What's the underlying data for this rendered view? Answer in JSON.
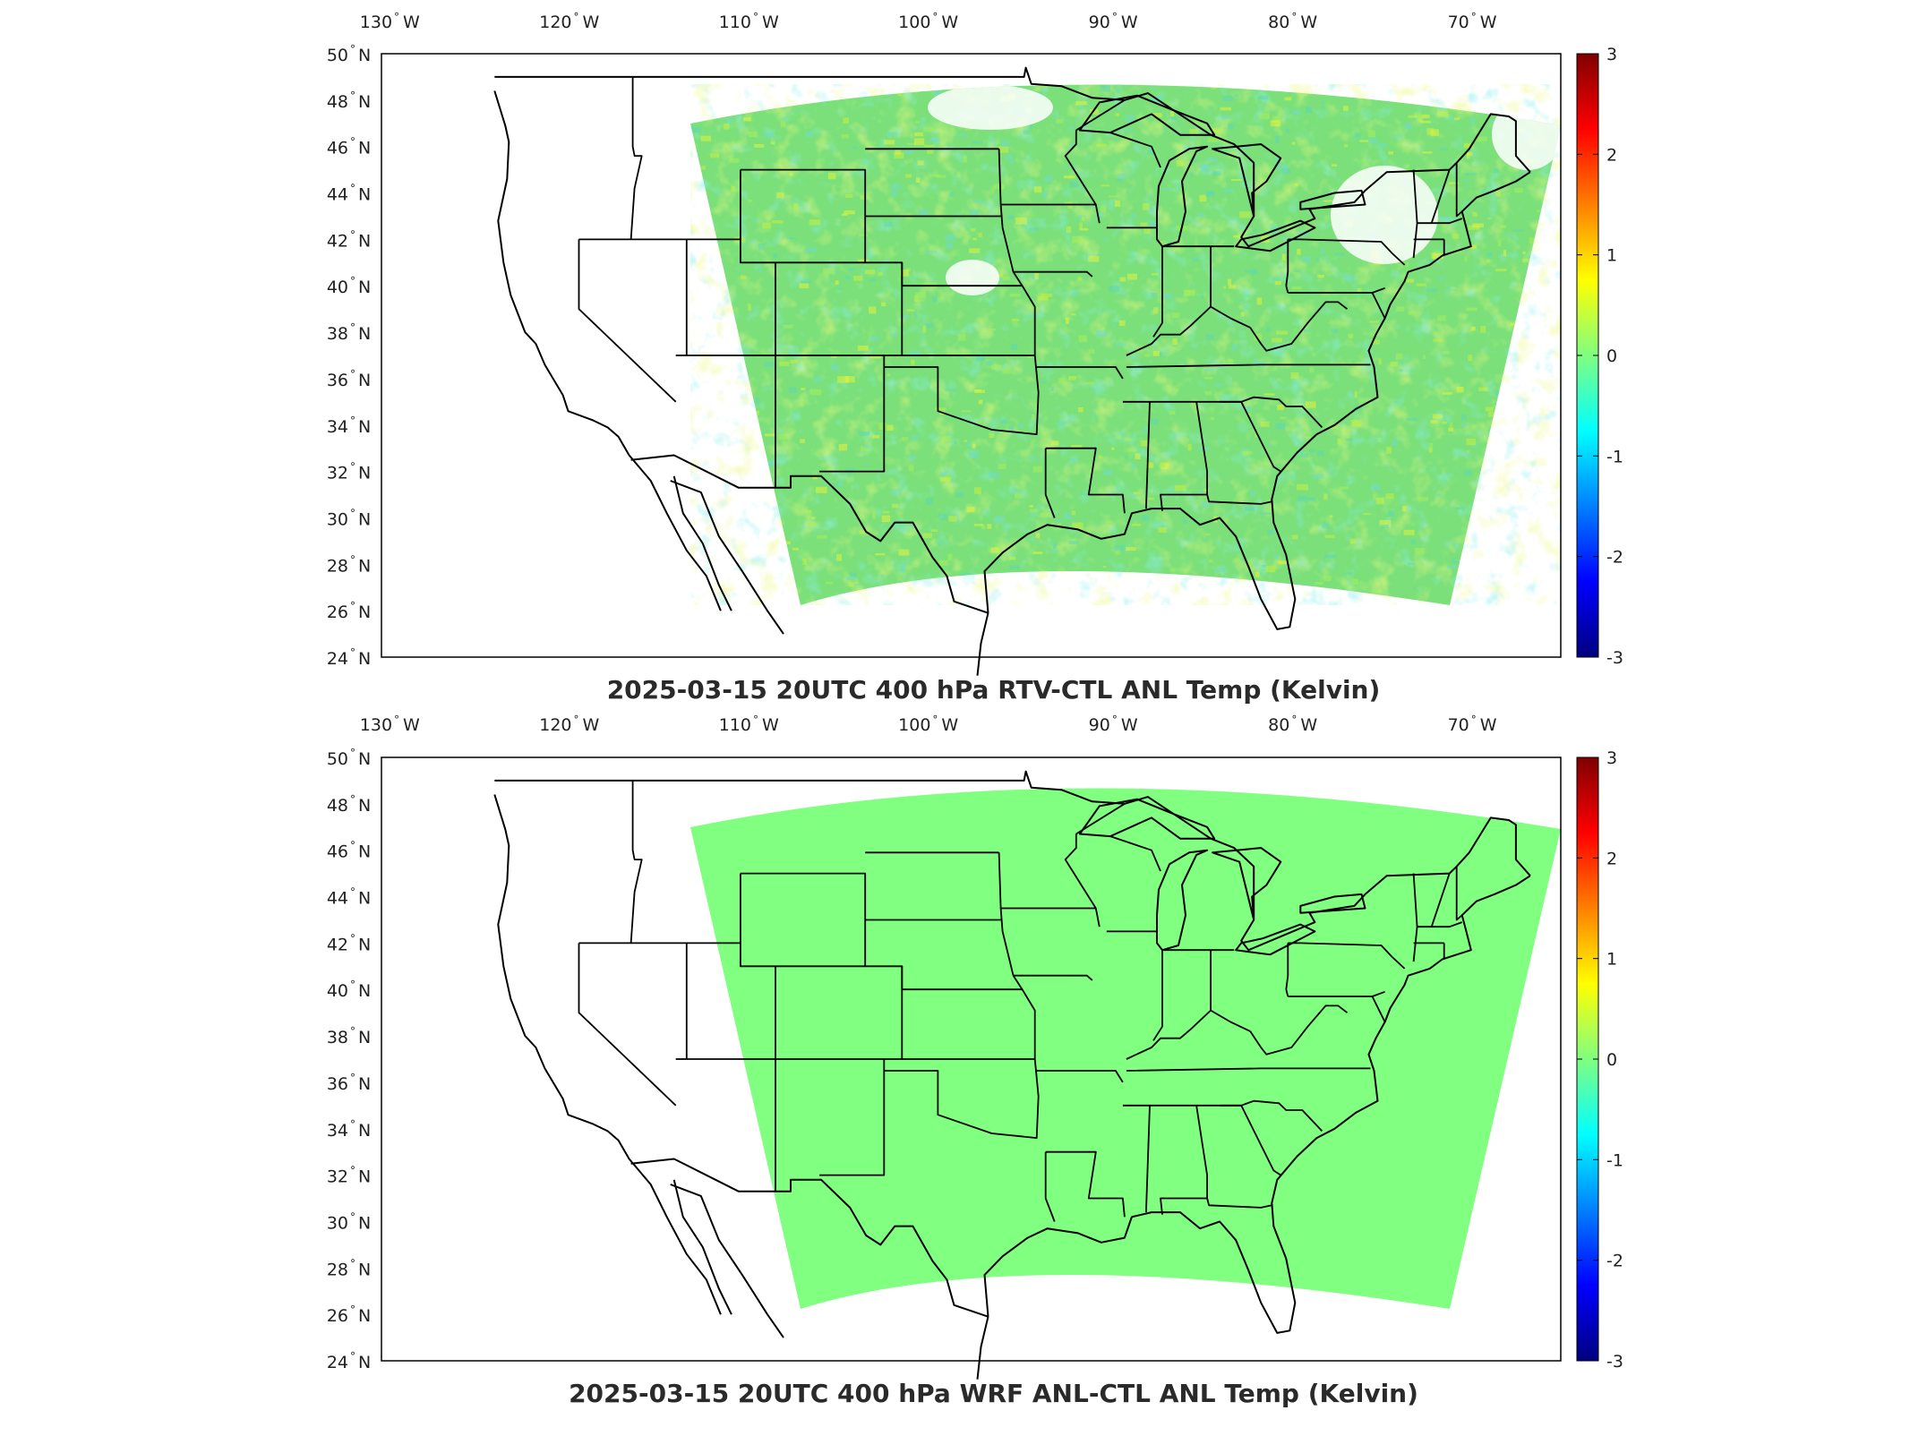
{
  "maps": [
    {
      "id": "rtv",
      "title": "2025-03-15 20UTC 400 hPa RTV-CTL ANL Temp (Kelvin)",
      "field": "noisy",
      "field_description": "mixed small anomalies: green dominant with yellow and cyan patches",
      "base_color": "#7be07a"
    },
    {
      "id": "wrf",
      "title": "2025-03-15 20UTC 400 hPa WRF ANL-CTL ANL Temp (Kelvin)",
      "field": "uniform",
      "field_description": "uniform zero difference",
      "base_color": "#80ff80"
    }
  ],
  "lon_ticks": [
    {
      "value": -130,
      "deg": "130",
      "hemi": "W"
    },
    {
      "value": -120,
      "deg": "120",
      "hemi": "W"
    },
    {
      "value": -110,
      "deg": "110",
      "hemi": "W"
    },
    {
      "value": -100,
      "deg": "100",
      "hemi": "W"
    },
    {
      "value": -90,
      "deg": "90",
      "hemi": "W"
    },
    {
      "value": -80,
      "deg": "80",
      "hemi": "W"
    },
    {
      "value": -70,
      "deg": "70",
      "hemi": "W"
    }
  ],
  "lat_ticks": [
    {
      "value": 50,
      "deg": "50",
      "hemi": "N"
    },
    {
      "value": 48,
      "deg": "48",
      "hemi": "N"
    },
    {
      "value": 46,
      "deg": "46",
      "hemi": "N"
    },
    {
      "value": 44,
      "deg": "44",
      "hemi": "N"
    },
    {
      "value": 42,
      "deg": "42",
      "hemi": "N"
    },
    {
      "value": 40,
      "deg": "40",
      "hemi": "N"
    },
    {
      "value": 38,
      "deg": "38",
      "hemi": "N"
    },
    {
      "value": 36,
      "deg": "36",
      "hemi": "N"
    },
    {
      "value": 34,
      "deg": "34",
      "hemi": "N"
    },
    {
      "value": 32,
      "deg": "32",
      "hemi": "N"
    },
    {
      "value": 30,
      "deg": "30",
      "hemi": "N"
    },
    {
      "value": 28,
      "deg": "28",
      "hemi": "N"
    },
    {
      "value": 26,
      "deg": "26",
      "hemi": "N"
    },
    {
      "value": 24,
      "deg": "24",
      "hemi": "N"
    }
  ],
  "colorbar": {
    "min": -3,
    "max": 3,
    "ticks": [
      "3",
      "2",
      "1",
      "0",
      "-1",
      "-2",
      "-3"
    ],
    "colormap": "jet"
  }
}
